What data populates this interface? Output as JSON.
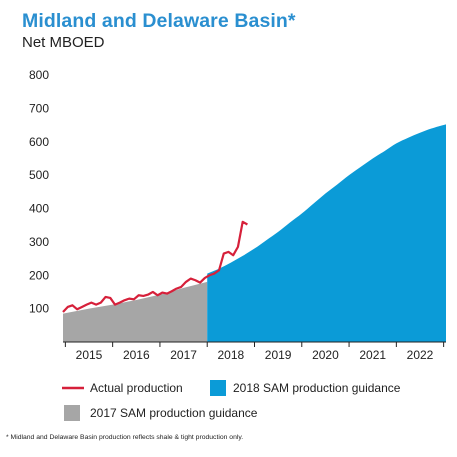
{
  "title": "Midland and Delaware Basin*",
  "subtitle": "Net MBOED",
  "footnote": "* Midland and Delaware Basin production reflects shale & tight production only.",
  "colors": {
    "title": "#2a8fd0",
    "actual": "#d6203a",
    "guidance_2018": "#0b9bd7",
    "guidance_2017": "#a6a6a6",
    "axis": "#222222"
  },
  "chart_data": {
    "type": "area",
    "title": "Midland and Delaware Basin*",
    "ylabel": "Net MBOED",
    "xlabel": "",
    "xlim": [
      2014.45,
      2022.55
    ],
    "ylim": [
      0,
      800
    ],
    "yticks": [
      100,
      200,
      300,
      400,
      500,
      600,
      700,
      800
    ],
    "ytick_labels": [
      "100",
      "200",
      "300",
      "400",
      "500",
      "600",
      "700",
      "800"
    ],
    "xticks": [
      2015,
      2016,
      2017,
      2018,
      2019,
      2020,
      2021,
      2022
    ],
    "xtick_labels": [
      "2015",
      "2016",
      "2017",
      "2018",
      "2019",
      "2020",
      "2021",
      "2022"
    ],
    "grid": false,
    "legend_position": "bottom",
    "series": [
      {
        "name": "Actual production",
        "type": "line",
        "color": "#d6203a",
        "x": [
          2014.45,
          2014.55,
          2014.65,
          2014.75,
          2014.85,
          2014.95,
          2015.05,
          2015.15,
          2015.25,
          2015.35,
          2015.45,
          2015.55,
          2015.65,
          2015.75,
          2015.85,
          2015.95,
          2016.05,
          2016.15,
          2016.25,
          2016.35,
          2016.45,
          2016.55,
          2016.65,
          2016.75,
          2016.85,
          2016.95,
          2017.05,
          2017.15,
          2017.25,
          2017.35,
          2017.45,
          2017.55,
          2017.65,
          2017.75,
          2017.85,
          2017.95,
          2018.05,
          2018.15,
          2018.25,
          2018.35
        ],
        "y": [
          90,
          105,
          110,
          98,
          105,
          112,
          118,
          112,
          118,
          135,
          132,
          112,
          118,
          125,
          130,
          128,
          140,
          138,
          142,
          150,
          140,
          148,
          145,
          152,
          160,
          165,
          180,
          190,
          185,
          178,
          192,
          200,
          205,
          215,
          265,
          270,
          260,
          285,
          360,
          352
        ]
      },
      {
        "name": "2017 SAM production guidance",
        "type": "area",
        "color": "#a6a6a6",
        "x": [
          2014.45,
          2015.0,
          2015.5,
          2016.0,
          2016.5,
          2017.0,
          2017.5
        ],
        "y": [
          85,
          100,
          112,
          126,
          142,
          162,
          180
        ]
      },
      {
        "name": "2018 SAM production guidance",
        "type": "area",
        "color": "#0b9bd7",
        "x": [
          2017.5,
          2017.75,
          2018.0,
          2018.25,
          2018.5,
          2018.75,
          2019.0,
          2019.25,
          2019.5,
          2019.75,
          2020.0,
          2020.25,
          2020.5,
          2020.75,
          2021.0,
          2021.25,
          2021.5,
          2021.75,
          2022.0,
          2022.25,
          2022.55
        ],
        "y": [
          205,
          220,
          238,
          258,
          280,
          305,
          330,
          358,
          385,
          415,
          445,
          472,
          500,
          525,
          550,
          572,
          595,
          612,
          627,
          640,
          652
        ]
      }
    ]
  }
}
